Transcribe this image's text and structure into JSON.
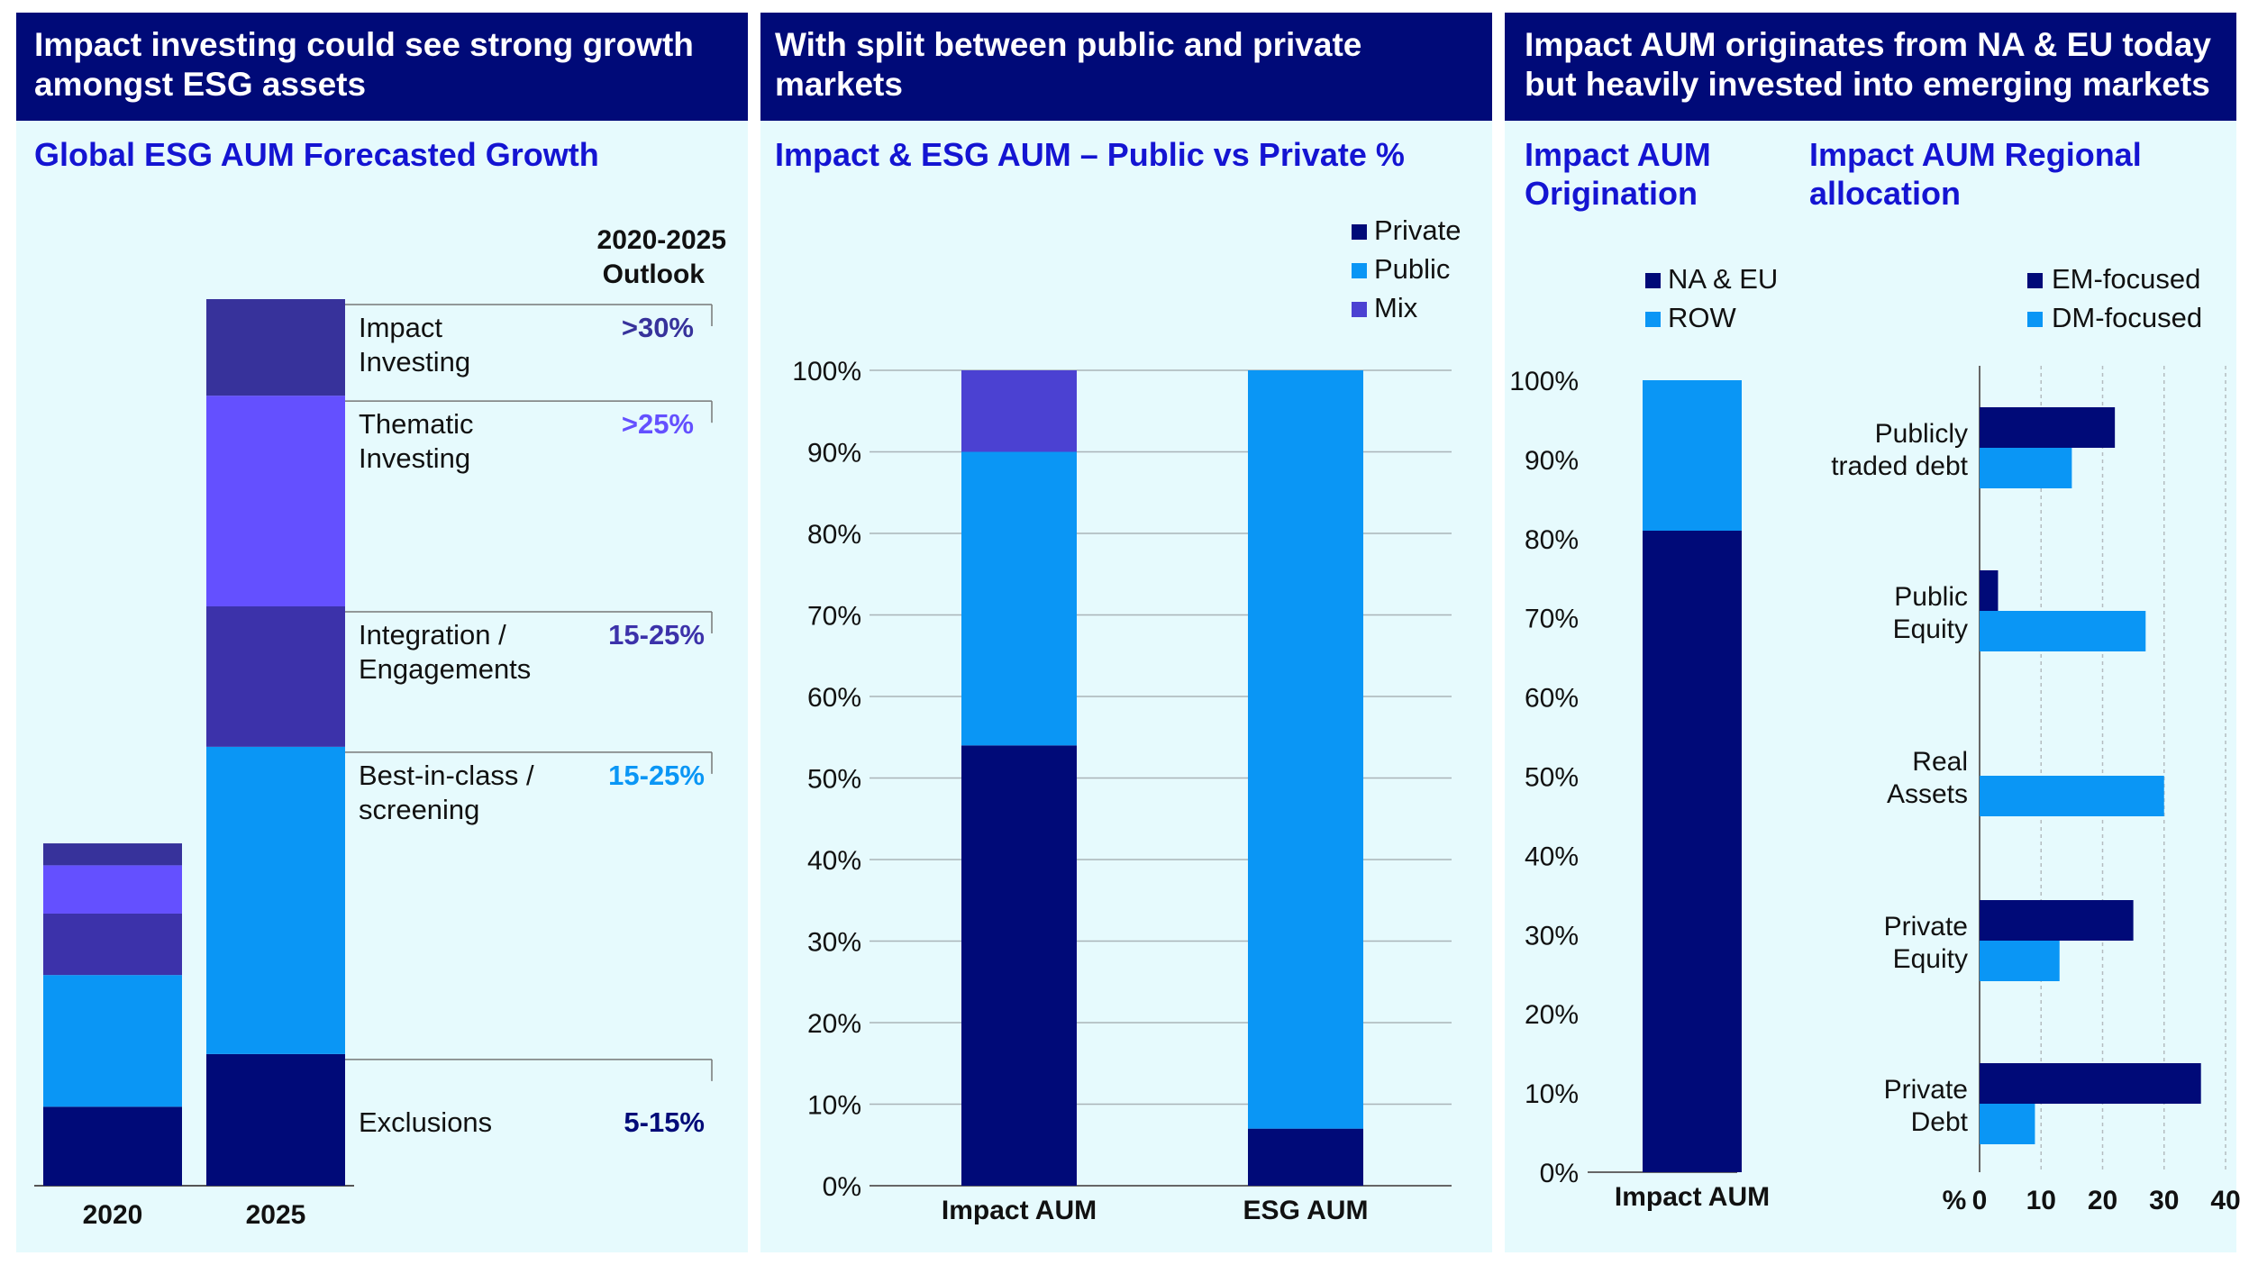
{
  "panels": [
    {
      "title": "Impact investing could see strong growth amongst ESG assets",
      "subtitle": "Global ESG AUM Forecasted Growth"
    },
    {
      "title": "With split between public and private markets",
      "subtitle": "Impact & ESG AUM – Public vs Private %"
    },
    {
      "title": "Impact AUM originates from NA & EU today but heavily invested into emerging markets",
      "subtitle_left": "Impact AUM Origination",
      "subtitle_right": "Impact AUM Regional allocation"
    }
  ],
  "chart_data": [
    {
      "type": "bar",
      "stacked": true,
      "title": "Global ESG AUM Forecasted Growth",
      "categories": [
        "2020",
        "2025"
      ],
      "outlook_header": "2020-2025 Outlook",
      "series": [
        {
          "name": "Exclusions",
          "label": "Exclusions",
          "outlook": "5-15%",
          "color": "#000a78",
          "values": [
            9,
            15
          ]
        },
        {
          "name": "Best-in-class / screening",
          "label": "Best-in-class / screening",
          "outlook": "15-25%",
          "color": "#0a96f5",
          "values": [
            15,
            35
          ]
        },
        {
          "name": "Integration / Engagements",
          "label": "Integration / Engagements",
          "outlook": "15-25%",
          "color": "#3c32aa",
          "values": [
            7,
            16
          ]
        },
        {
          "name": "Thematic Investing",
          "label": "Thematic Investing",
          "outlook": ">25%",
          "color": "#6450ff",
          "values": [
            5.5,
            24
          ]
        },
        {
          "name": "Impact Investing",
          "label": "Impact Investing",
          "outlook": ">30%",
          "color": "#37329b",
          "values": [
            2.5,
            11
          ]
        }
      ],
      "ylim": [
        0,
        101
      ]
    },
    {
      "type": "bar",
      "stacked": true,
      "title": "Impact & ESG AUM – Public vs Private %",
      "categories": [
        "Impact AUM",
        "ESG AUM"
      ],
      "series": [
        {
          "name": "Private",
          "color": "#000a78",
          "values": [
            54,
            7
          ]
        },
        {
          "name": "Public",
          "color": "#0a96f5",
          "values": [
            36,
            93
          ]
        },
        {
          "name": "Mix",
          "color": "#4b41d2",
          "values": [
            10,
            0
          ]
        }
      ],
      "legend_order": [
        "Private",
        "Public",
        "Mix"
      ],
      "yticks": [
        "0%",
        "10%",
        "20%",
        "30%",
        "40%",
        "50%",
        "60%",
        "70%",
        "80%",
        "90%",
        "100%"
      ],
      "ylim": [
        0,
        100
      ]
    },
    {
      "type": "bar",
      "stacked": true,
      "title": "Impact AUM Origination",
      "categories": [
        "Impact AUM"
      ],
      "series": [
        {
          "name": "NA & EU",
          "color": "#000a78",
          "values": [
            81
          ]
        },
        {
          "name": "ROW",
          "color": "#0a96f5",
          "values": [
            19
          ]
        }
      ],
      "yticks": [
        "0%",
        "10%",
        "20%",
        "30%",
        "40%",
        "50%",
        "60%",
        "70%",
        "80%",
        "90%",
        "100%"
      ],
      "ylim": [
        0,
        100
      ]
    },
    {
      "type": "bar",
      "orientation": "horizontal",
      "title": "Impact AUM Regional allocation",
      "categories": [
        "Publicly traded debt",
        "Public Equity",
        "Real Assets",
        "Private Equity",
        "Private Debt"
      ],
      "category_lines": [
        [
          "Publicly",
          "traded debt"
        ],
        [
          "Public",
          "Equity"
        ],
        [
          "Real",
          "Assets"
        ],
        [
          "Private",
          "Equity"
        ],
        [
          "Private",
          "Debt"
        ]
      ],
      "series": [
        {
          "name": "EM-focused",
          "color": "#000a78",
          "values": [
            22,
            3,
            0,
            25,
            36
          ]
        },
        {
          "name": "DM-focused",
          "color": "#0a96f5",
          "values": [
            15,
            27,
            30,
            13,
            9
          ]
        }
      ],
      "xlabel": "%",
      "xticks": [
        "0",
        "10",
        "20",
        "30",
        "40"
      ],
      "xlim": [
        0,
        40
      ]
    }
  ]
}
